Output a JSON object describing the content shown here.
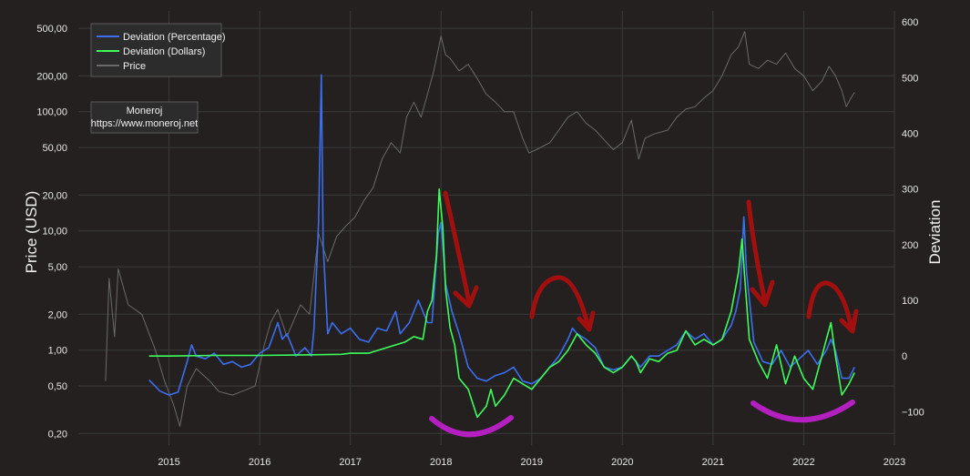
{
  "chart_data": {
    "type": "line",
    "xlabel": "",
    "ylabel": "Price (USD)",
    "y2label": "Deviation",
    "x_ticks": [
      "2015",
      "2016",
      "2017",
      "2018",
      "2019",
      "2020",
      "2021",
      "2022",
      "2023"
    ],
    "y_scale": "log",
    "y_ticks": [
      {
        "value": 0.2,
        "label": "0,20"
      },
      {
        "value": 0.5,
        "label": "0,50"
      },
      {
        "value": 1,
        "label": "1,00"
      },
      {
        "value": 2,
        "label": "2,00"
      },
      {
        "value": 5,
        "label": "5,00"
      },
      {
        "value": 10,
        "label": "10,00"
      },
      {
        "value": 20,
        "label": "20,00"
      },
      {
        "value": 50,
        "label": "50,00"
      },
      {
        "value": 100,
        "label": "100,00"
      },
      {
        "value": 200,
        "label": "200,00"
      },
      {
        "value": 500,
        "label": "500,00"
      }
    ],
    "y2_ticks": [
      {
        "value": -100,
        "label": "−100"
      },
      {
        "value": 0,
        "label": "0"
      },
      {
        "value": 100,
        "label": "100"
      },
      {
        "value": 200,
        "label": "200"
      },
      {
        "value": 300,
        "label": "300"
      },
      {
        "value": 400,
        "label": "400"
      },
      {
        "value": 500,
        "label": "500"
      },
      {
        "value": 600,
        "label": "600"
      }
    ],
    "grid": true,
    "legend_position": "top-left",
    "legend": [
      "Deviation (Percentage)",
      "Deviation (Dollars)",
      "Price"
    ],
    "annotation": {
      "line1": "Moneroj",
      "line2": "https://www.moneroj.net"
    },
    "series": [
      {
        "name": "Price",
        "axis": "left",
        "color": "#6a6a6a",
        "points": [
          [
            2014.3,
            0.55
          ],
          [
            2014.34,
            4.0
          ],
          [
            2014.4,
            1.3
          ],
          [
            2014.44,
            4.8
          ],
          [
            2014.55,
            2.4
          ],
          [
            2014.7,
            2.0
          ],
          [
            2014.85,
            1.0
          ],
          [
            2014.95,
            0.55
          ],
          [
            2015.05,
            0.35
          ],
          [
            2015.12,
            0.23
          ],
          [
            2015.2,
            0.5
          ],
          [
            2015.3,
            0.7
          ],
          [
            2015.45,
            0.55
          ],
          [
            2015.55,
            0.45
          ],
          [
            2015.7,
            0.42
          ],
          [
            2015.8,
            0.45
          ],
          [
            2015.95,
            0.5
          ],
          [
            2016.05,
            1.1
          ],
          [
            2016.12,
            1.7
          ],
          [
            2016.2,
            2.2
          ],
          [
            2016.3,
            1.3
          ],
          [
            2016.45,
            2.4
          ],
          [
            2016.55,
            2.0
          ],
          [
            2016.65,
            9.5
          ],
          [
            2016.75,
            5.5
          ],
          [
            2016.85,
            9.0
          ],
          [
            2016.95,
            11.0
          ],
          [
            2017.05,
            13.0
          ],
          [
            2017.15,
            18.0
          ],
          [
            2017.25,
            23.0
          ],
          [
            2017.35,
            40.0
          ],
          [
            2017.45,
            55.0
          ],
          [
            2017.55,
            45.0
          ],
          [
            2017.62,
            90.0
          ],
          [
            2017.7,
            120.0
          ],
          [
            2017.78,
            90.0
          ],
          [
            2017.85,
            140.0
          ],
          [
            2017.92,
            220.0
          ],
          [
            2018.0,
            430.0
          ],
          [
            2018.05,
            300.0
          ],
          [
            2018.1,
            280.0
          ],
          [
            2018.2,
            220.0
          ],
          [
            2018.3,
            250.0
          ],
          [
            2018.4,
            190.0
          ],
          [
            2018.5,
            140.0
          ],
          [
            2018.6,
            120.0
          ],
          [
            2018.7,
            100.0
          ],
          [
            2018.8,
            100.0
          ],
          [
            2018.9,
            60.0
          ],
          [
            2018.97,
            45.0
          ],
          [
            2019.05,
            48.0
          ],
          [
            2019.2,
            55.0
          ],
          [
            2019.3,
            70.0
          ],
          [
            2019.4,
            90.0
          ],
          [
            2019.5,
            100.0
          ],
          [
            2019.6,
            80.0
          ],
          [
            2019.7,
            70.0
          ],
          [
            2019.8,
            58.0
          ],
          [
            2019.9,
            48.0
          ],
          [
            2020.0,
            55.0
          ],
          [
            2020.1,
            85.0
          ],
          [
            2020.18,
            40.0
          ],
          [
            2020.25,
            60.0
          ],
          [
            2020.35,
            65.0
          ],
          [
            2020.5,
            70.0
          ],
          [
            2020.6,
            90.0
          ],
          [
            2020.7,
            105.0
          ],
          [
            2020.8,
            110.0
          ],
          [
            2020.9,
            130.0
          ],
          [
            2021.0,
            150.0
          ],
          [
            2021.1,
            200.0
          ],
          [
            2021.2,
            300.0
          ],
          [
            2021.28,
            350.0
          ],
          [
            2021.35,
            470.0
          ],
          [
            2021.4,
            250.0
          ],
          [
            2021.5,
            230.0
          ],
          [
            2021.6,
            270.0
          ],
          [
            2021.7,
            250.0
          ],
          [
            2021.8,
            310.0
          ],
          [
            2021.9,
            230.0
          ],
          [
            2022.0,
            200.0
          ],
          [
            2022.1,
            150.0
          ],
          [
            2022.2,
            180.0
          ],
          [
            2022.28,
            240.0
          ],
          [
            2022.35,
            200.0
          ],
          [
            2022.42,
            150.0
          ],
          [
            2022.47,
            110.0
          ],
          [
            2022.52,
            130.0
          ],
          [
            2022.56,
            145.0
          ]
        ]
      },
      {
        "name": "Deviation (Percentage)",
        "axis": "right",
        "color": "#3b6ff0",
        "points": [
          [
            2014.78,
            -43
          ],
          [
            2014.9,
            -63
          ],
          [
            2015.0,
            -70
          ],
          [
            2015.1,
            -65
          ],
          [
            2015.2,
            -10
          ],
          [
            2015.25,
            20
          ],
          [
            2015.3,
            0
          ],
          [
            2015.4,
            -5
          ],
          [
            2015.5,
            5
          ],
          [
            2015.6,
            -15
          ],
          [
            2015.7,
            -10
          ],
          [
            2015.8,
            -20
          ],
          [
            2015.9,
            -15
          ],
          [
            2016.0,
            5
          ],
          [
            2016.1,
            15
          ],
          [
            2016.2,
            60
          ],
          [
            2016.25,
            30
          ],
          [
            2016.3,
            40
          ],
          [
            2016.4,
            0
          ],
          [
            2016.5,
            15
          ],
          [
            2016.57,
            0
          ],
          [
            2016.6,
            50
          ],
          [
            2016.65,
            240
          ],
          [
            2016.68,
            505
          ],
          [
            2016.7,
            200
          ],
          [
            2016.75,
            40
          ],
          [
            2016.8,
            60
          ],
          [
            2016.9,
            40
          ],
          [
            2017.0,
            50
          ],
          [
            2017.1,
            30
          ],
          [
            2017.2,
            25
          ],
          [
            2017.3,
            50
          ],
          [
            2017.4,
            45
          ],
          [
            2017.5,
            80
          ],
          [
            2017.55,
            40
          ],
          [
            2017.65,
            60
          ],
          [
            2017.75,
            100
          ],
          [
            2017.85,
            60
          ],
          [
            2017.9,
            60
          ],
          [
            2017.97,
            220
          ],
          [
            2018.0,
            240
          ],
          [
            2018.05,
            130
          ],
          [
            2018.12,
            80
          ],
          [
            2018.2,
            40
          ],
          [
            2018.3,
            -20
          ],
          [
            2018.4,
            -40
          ],
          [
            2018.5,
            -45
          ],
          [
            2018.6,
            -35
          ],
          [
            2018.7,
            -30
          ],
          [
            2018.8,
            -20
          ],
          [
            2018.9,
            -45
          ],
          [
            2019.0,
            -50
          ],
          [
            2019.1,
            -40
          ],
          [
            2019.2,
            -20
          ],
          [
            2019.3,
            0
          ],
          [
            2019.4,
            30
          ],
          [
            2019.45,
            50
          ],
          [
            2019.5,
            40
          ],
          [
            2019.6,
            30
          ],
          [
            2019.7,
            15
          ],
          [
            2019.8,
            -20
          ],
          [
            2019.9,
            -25
          ],
          [
            2020.0,
            -20
          ],
          [
            2020.1,
            0
          ],
          [
            2020.15,
            -10
          ],
          [
            2020.2,
            -20
          ],
          [
            2020.3,
            0
          ],
          [
            2020.4,
            0
          ],
          [
            2020.5,
            10
          ],
          [
            2020.6,
            20
          ],
          [
            2020.7,
            45
          ],
          [
            2020.8,
            30
          ],
          [
            2020.9,
            40
          ],
          [
            2021.0,
            20
          ],
          [
            2021.1,
            30
          ],
          [
            2021.2,
            55
          ],
          [
            2021.25,
            80
          ],
          [
            2021.3,
            120
          ],
          [
            2021.34,
            250
          ],
          [
            2021.37,
            150
          ],
          [
            2021.45,
            25
          ],
          [
            2021.55,
            -10
          ],
          [
            2021.65,
            -15
          ],
          [
            2021.75,
            10
          ],
          [
            2021.85,
            -20
          ],
          [
            2021.95,
            -5
          ],
          [
            2022.05,
            10
          ],
          [
            2022.15,
            -15
          ],
          [
            2022.25,
            10
          ],
          [
            2022.3,
            30
          ],
          [
            2022.35,
            10
          ],
          [
            2022.42,
            -40
          ],
          [
            2022.5,
            -40
          ],
          [
            2022.56,
            -20
          ]
        ]
      },
      {
        "name": "Deviation (Dollars)",
        "axis": "right",
        "color": "#3cff5a",
        "points": [
          [
            2014.78,
            0
          ],
          [
            2015.0,
            0
          ],
          [
            2015.5,
            1
          ],
          [
            2016.0,
            1
          ],
          [
            2016.5,
            2
          ],
          [
            2016.9,
            3
          ],
          [
            2017.0,
            5
          ],
          [
            2017.2,
            5
          ],
          [
            2017.4,
            15
          ],
          [
            2017.6,
            25
          ],
          [
            2017.7,
            35
          ],
          [
            2017.8,
            30
          ],
          [
            2017.85,
            80
          ],
          [
            2017.9,
            100
          ],
          [
            2017.95,
            180
          ],
          [
            2017.98,
            300
          ],
          [
            2018.02,
            230
          ],
          [
            2018.05,
            120
          ],
          [
            2018.1,
            50
          ],
          [
            2018.15,
            20
          ],
          [
            2018.2,
            -40
          ],
          [
            2018.3,
            -60
          ],
          [
            2018.4,
            -110
          ],
          [
            2018.5,
            -90
          ],
          [
            2018.55,
            -60
          ],
          [
            2018.6,
            -90
          ],
          [
            2018.7,
            -70
          ],
          [
            2018.8,
            -40
          ],
          [
            2018.9,
            -50
          ],
          [
            2019.0,
            -60
          ],
          [
            2019.1,
            -40
          ],
          [
            2019.2,
            -20
          ],
          [
            2019.3,
            -10
          ],
          [
            2019.4,
            10
          ],
          [
            2019.5,
            40
          ],
          [
            2019.6,
            20
          ],
          [
            2019.7,
            5
          ],
          [
            2019.8,
            -20
          ],
          [
            2019.9,
            -30
          ],
          [
            2020.0,
            -20
          ],
          [
            2020.1,
            0
          ],
          [
            2020.15,
            -10
          ],
          [
            2020.2,
            -30
          ],
          [
            2020.3,
            -5
          ],
          [
            2020.4,
            -10
          ],
          [
            2020.5,
            5
          ],
          [
            2020.6,
            10
          ],
          [
            2020.7,
            45
          ],
          [
            2020.8,
            20
          ],
          [
            2020.9,
            30
          ],
          [
            2021.0,
            20
          ],
          [
            2021.1,
            30
          ],
          [
            2021.2,
            80
          ],
          [
            2021.28,
            150
          ],
          [
            2021.32,
            210
          ],
          [
            2021.35,
            140
          ],
          [
            2021.4,
            30
          ],
          [
            2021.5,
            -10
          ],
          [
            2021.6,
            -40
          ],
          [
            2021.7,
            20
          ],
          [
            2021.8,
            -50
          ],
          [
            2021.9,
            0
          ],
          [
            2022.0,
            -40
          ],
          [
            2022.1,
            -60
          ],
          [
            2022.2,
            0
          ],
          [
            2022.25,
            30
          ],
          [
            2022.3,
            60
          ],
          [
            2022.35,
            0
          ],
          [
            2022.42,
            -70
          ],
          [
            2022.5,
            -50
          ],
          [
            2022.56,
            -30
          ]
        ]
      }
    ]
  }
}
